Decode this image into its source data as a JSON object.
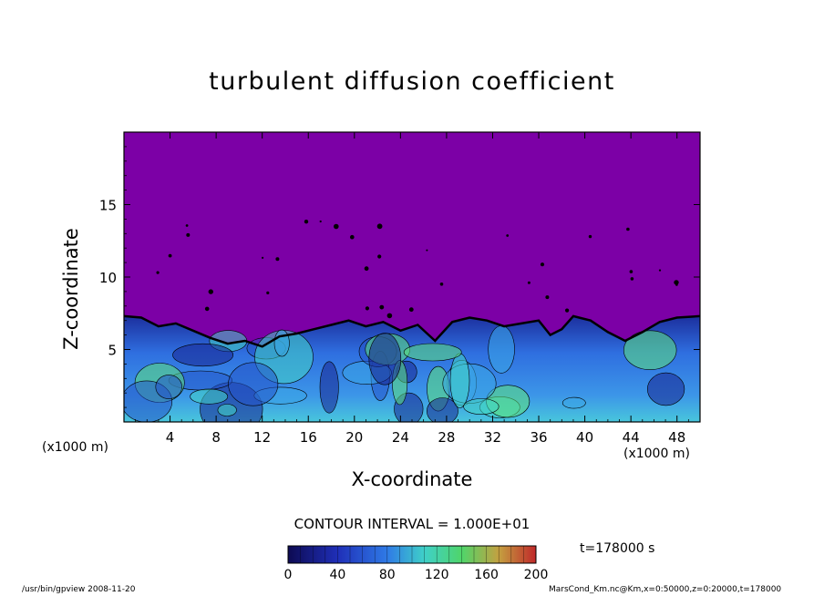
{
  "chart_data": {
    "type": "heatmap",
    "title": "turbulent diffusion coefficient",
    "xlabel": "X-coordinate",
    "ylabel": "Z-coordinate",
    "x_unit": "(x1000 m)",
    "x_ticks": [
      4,
      8,
      12,
      16,
      20,
      24,
      28,
      32,
      36,
      40,
      44,
      48
    ],
    "y_ticks": [
      5,
      10,
      15
    ],
    "xlim": [
      0,
      50
    ],
    "ylim": [
      0,
      20
    ],
    "colorbar": {
      "ticks": [
        0,
        40,
        80,
        120,
        160,
        200
      ],
      "range": [
        0,
        200
      ]
    },
    "contour_interval": "CONTOUR INTERVAL = 1.000E+01",
    "time": "t=178000 s",
    "boundary_layer_top": [
      [
        0,
        7.3
      ],
      [
        1.5,
        7.2
      ],
      [
        3,
        6.6
      ],
      [
        4.5,
        6.8
      ],
      [
        6,
        6.3
      ],
      [
        7.5,
        5.8
      ],
      [
        9,
        5.4
      ],
      [
        10.5,
        5.6
      ],
      [
        12,
        5.2
      ],
      [
        13.5,
        5.9
      ],
      [
        15,
        6.1
      ],
      [
        16.5,
        6.4
      ],
      [
        18,
        6.7
      ],
      [
        19.5,
        7.0
      ],
      [
        21,
        6.6
      ],
      [
        22.5,
        6.9
      ],
      [
        24,
        6.3
      ],
      [
        25.5,
        6.7
      ],
      [
        27,
        5.6
      ],
      [
        28.5,
        6.9
      ],
      [
        30,
        7.2
      ],
      [
        31.5,
        7.0
      ],
      [
        33,
        6.6
      ],
      [
        34.5,
        6.8
      ],
      [
        36,
        7.0
      ],
      [
        37,
        6.0
      ],
      [
        38,
        6.4
      ],
      [
        39,
        7.3
      ],
      [
        40.5,
        7.0
      ],
      [
        42,
        6.2
      ],
      [
        43.5,
        5.6
      ],
      [
        45,
        6.2
      ],
      [
        46.5,
        6.9
      ],
      [
        48,
        7.2
      ],
      [
        50,
        7.3
      ]
    ]
  },
  "footer": {
    "left": "/usr/bin/gpview   2008-11-20",
    "right": "MarsCond_Km.nc@Km,x=0:50000,z=0:20000,t=178000"
  },
  "colors": {
    "background_purple": "#7c00a6",
    "low": "#0d0a52",
    "mid": "#1e5fe0",
    "high": "#b8222a"
  }
}
